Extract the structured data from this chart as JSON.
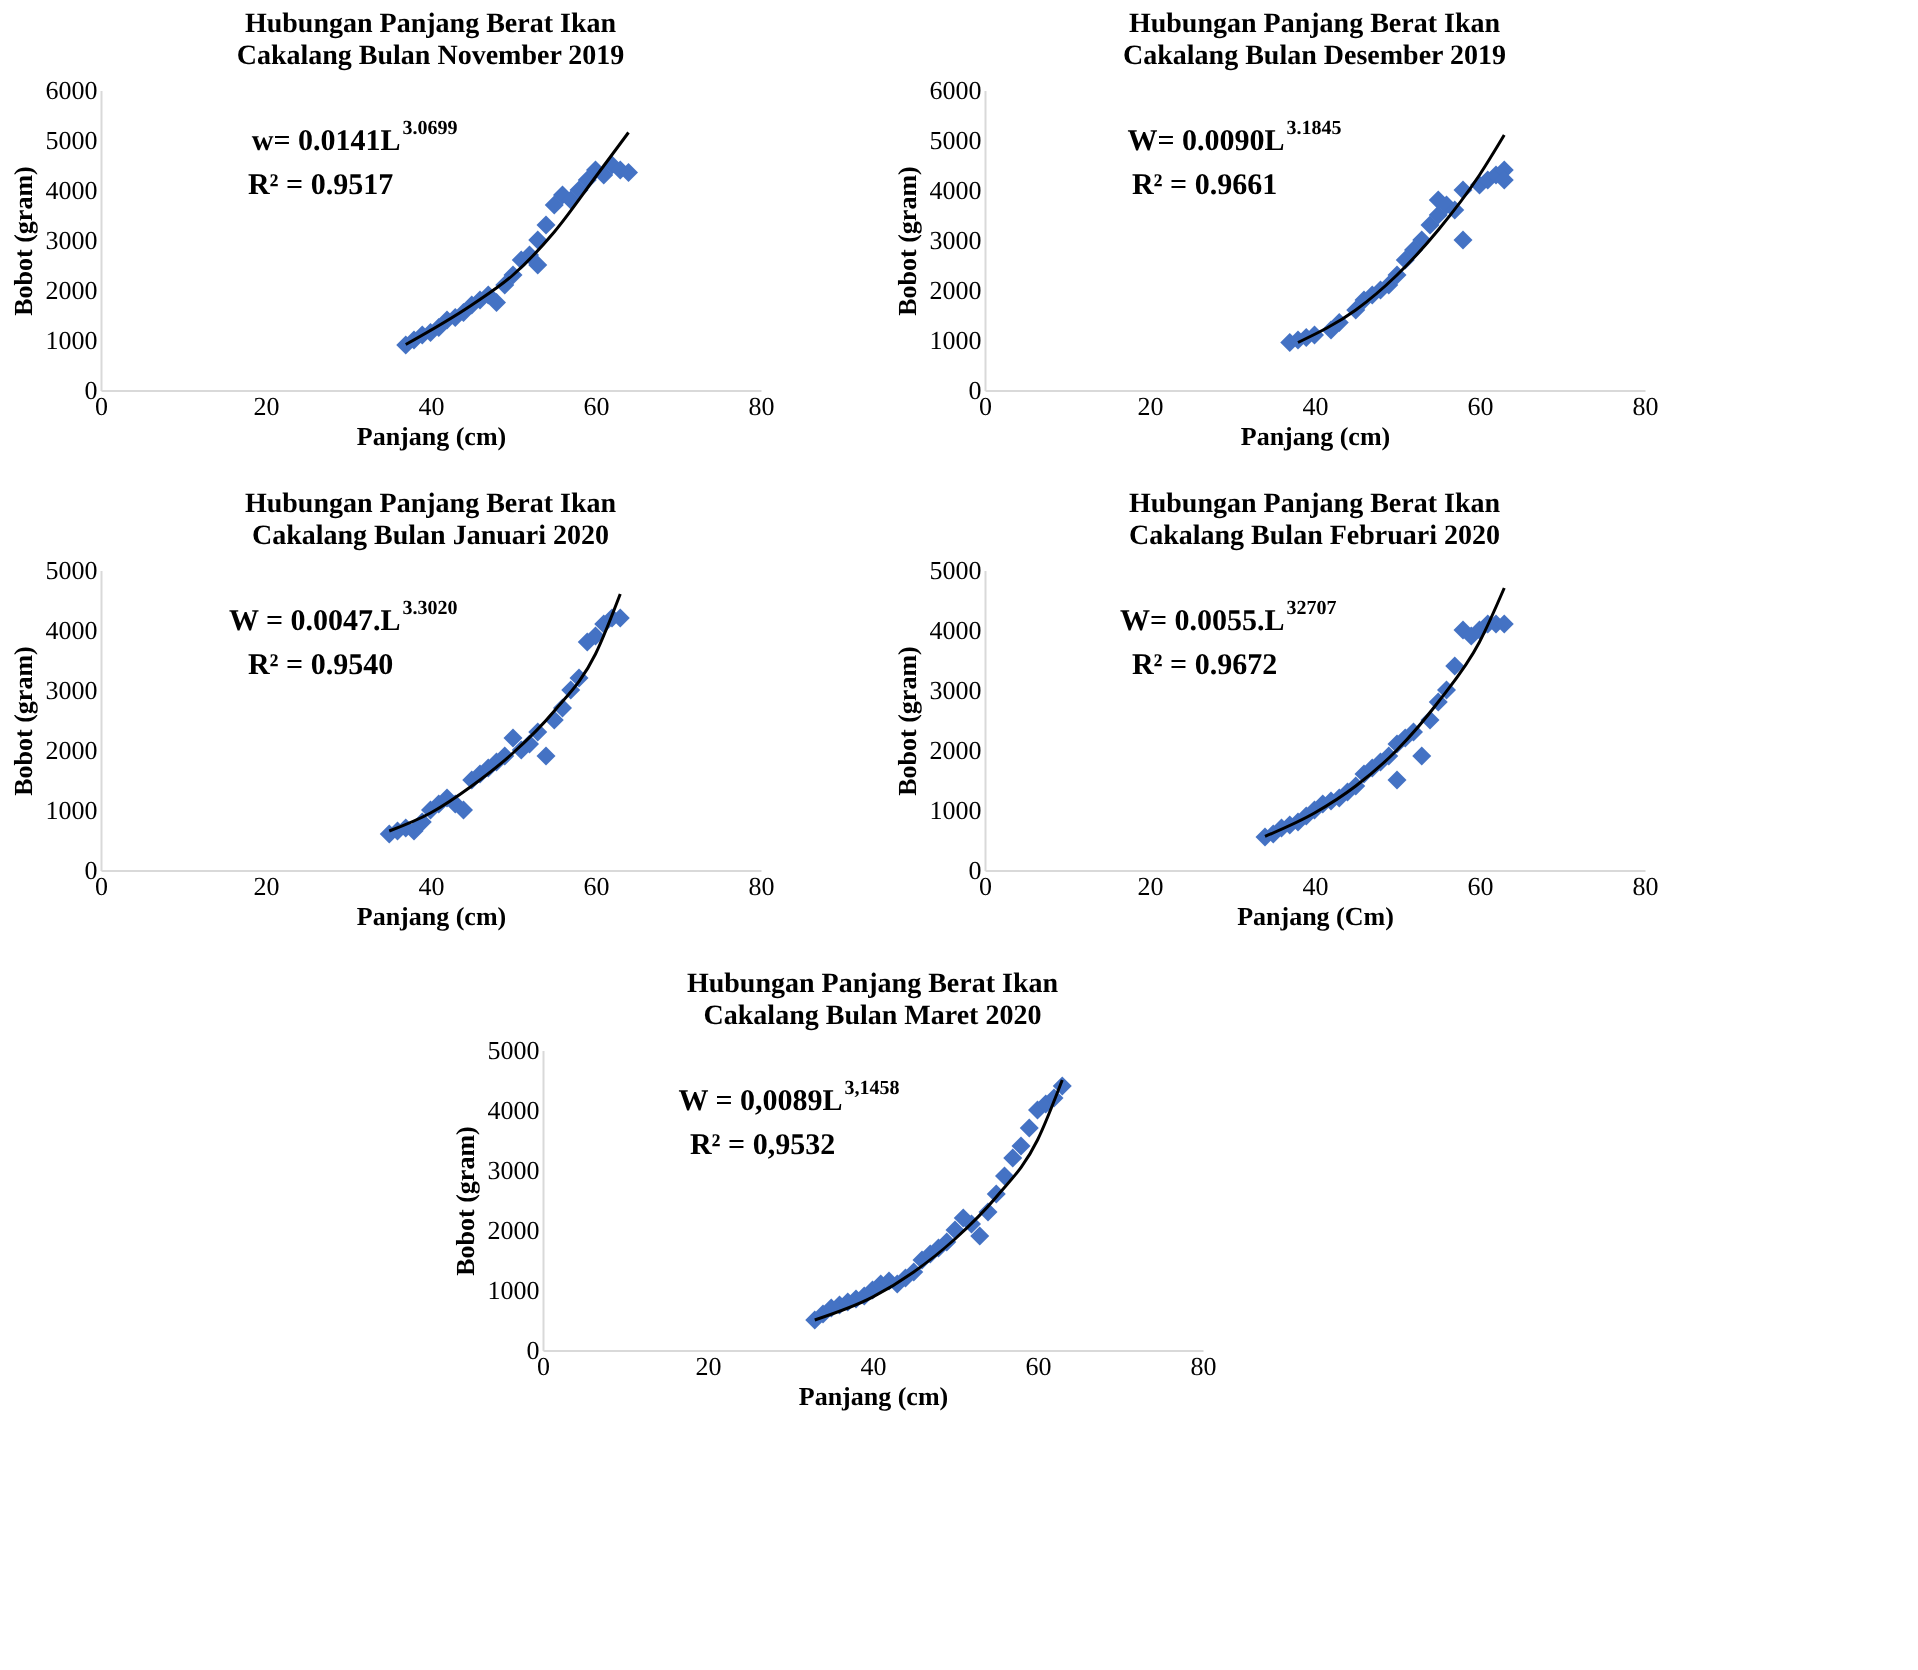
{
  "chart_data": [
    {
      "type": "scatter",
      "title": "Hubungan Panjang Berat Ikan\nCakalang Bulan November 2019",
      "xlabel": "Panjang (cm)",
      "ylabel": "Bobot (gram)",
      "xlim": [
        0,
        80
      ],
      "xticks": [
        0,
        20,
        40,
        60,
        80
      ],
      "ylim": [
        0,
        6000
      ],
      "yticks": [
        0,
        1000,
        2000,
        3000,
        4000,
        5000,
        6000
      ],
      "grid": false,
      "legend": false,
      "annotations": [
        "w= 0.0141L$^{3.0699}$",
        "R² = 0.9517"
      ],
      "series": [
        {
          "type": "scatter",
          "marker": "diamond",
          "color": "#4472c4",
          "x": [
            37,
            38,
            39,
            40,
            41,
            42,
            43,
            44,
            45,
            46,
            47,
            48,
            49,
            50,
            51,
            52,
            53,
            53,
            54,
            55,
            56,
            57,
            58,
            59,
            60,
            61,
            62,
            63,
            64
          ],
          "values": [
            900,
            1000,
            1100,
            1150,
            1250,
            1400,
            1450,
            1550,
            1700,
            1800,
            1900,
            1750,
            2100,
            2300,
            2600,
            2700,
            2500,
            3000,
            3300,
            3700,
            3900,
            3800,
            4000,
            4200,
            4400,
            4300,
            4500,
            4400,
            4350
          ]
        },
        {
          "type": "line",
          "marker": "none",
          "line_style": "solid",
          "color": "#000000",
          "x": [
            37,
            45,
            50,
            55,
            60,
            64
          ],
          "values": [
            910,
            1700,
            2300,
            3160,
            4260,
            5150
          ]
        }
      ]
    },
    {
      "type": "scatter",
      "title": "Hubungan Panjang Berat Ikan\nCakalang Bulan Desember 2019",
      "xlabel": "Panjang (cm)",
      "ylabel": "Bobot (gram)",
      "xlim": [
        0,
        80
      ],
      "xticks": [
        0,
        20,
        40,
        60,
        80
      ],
      "ylim": [
        0,
        6000
      ],
      "yticks": [
        0,
        1000,
        2000,
        3000,
        4000,
        5000,
        6000
      ],
      "grid": false,
      "legend": false,
      "annotations": [
        "W= 0.0090L$^{3.1845}$",
        "R² = 0.9661"
      ],
      "series": [
        {
          "type": "scatter",
          "marker": "diamond",
          "color": "#4472c4",
          "x": [
            37,
            38,
            39,
            40,
            42,
            43,
            45,
            46,
            47,
            48,
            49,
            50,
            51,
            52,
            53,
            54,
            55,
            55,
            56,
            57,
            58,
            58,
            60,
            61,
            62,
            63,
            63
          ],
          "values": [
            950,
            1000,
            1050,
            1100,
            1200,
            1350,
            1600,
            1800,
            1900,
            2000,
            2100,
            2300,
            2600,
            2800,
            3000,
            3300,
            3500,
            3800,
            3700,
            3600,
            3000,
            4000,
            4100,
            4200,
            4300,
            4400,
            4200
          ]
        },
        {
          "type": "line",
          "marker": "none",
          "line_style": "solid",
          "color": "#000000",
          "x": [
            38,
            45,
            50,
            55,
            60,
            63
          ],
          "values": [
            950,
            1600,
            2300,
            3200,
            4300,
            5100
          ]
        }
      ]
    },
    {
      "type": "scatter",
      "title": "Hubungan Panjang Berat Ikan\nCakalang Bulan Januari 2020",
      "xlabel": "Panjang (cm)",
      "ylabel": "Bobot (gram)",
      "xlim": [
        0,
        80
      ],
      "xticks": [
        0,
        20,
        40,
        60,
        80
      ],
      "ylim": [
        0,
        5000
      ],
      "yticks": [
        0,
        1000,
        2000,
        3000,
        4000,
        5000
      ],
      "grid": false,
      "legend": false,
      "annotations": [
        "W = 0.0047.L$^{3.3020}$",
        "R² = 0.9540"
      ],
      "series": [
        {
          "type": "scatter",
          "marker": "diamond",
          "color": "#4472c4",
          "x": [
            35,
            36,
            37,
            38,
            39,
            40,
            41,
            42,
            43,
            44,
            45,
            46,
            47,
            48,
            49,
            50,
            51,
            52,
            53,
            54,
            55,
            56,
            57,
            58,
            59,
            60,
            61,
            62,
            63
          ],
          "values": [
            600,
            650,
            700,
            650,
            800,
            1000,
            1100,
            1200,
            1100,
            1000,
            1500,
            1600,
            1700,
            1800,
            1900,
            2200,
            2000,
            2100,
            2300,
            1900,
            2500,
            2700,
            3000,
            3200,
            3800,
            3900,
            4100,
            4200,
            4200
          ]
        },
        {
          "type": "line",
          "marker": "none",
          "line_style": "solid",
          "color": "#000000",
          "x": [
            35,
            40,
            45,
            50,
            55,
            60,
            63
          ],
          "values": [
            650,
            950,
            1400,
            1950,
            2650,
            3600,
            4600
          ]
        }
      ]
    },
    {
      "type": "scatter",
      "title": "Hubungan Panjang Berat Ikan\nCakalang Bulan Februari 2020",
      "xlabel": "Panjang (Cm)",
      "ylabel": "Bobot (gram)",
      "xlim": [
        0,
        80
      ],
      "xticks": [
        0,
        20,
        40,
        60,
        80
      ],
      "ylim": [
        0,
        5000
      ],
      "yticks": [
        0,
        1000,
        2000,
        3000,
        4000,
        5000
      ],
      "grid": false,
      "legend": false,
      "annotations": [
        "W= 0.0055.L$^{32707}$",
        "R² = 0.9672"
      ],
      "series": [
        {
          "type": "scatter",
          "marker": "diamond",
          "color": "#4472c4",
          "x": [
            34,
            35,
            36,
            37,
            38,
            39,
            40,
            41,
            42,
            43,
            44,
            45,
            46,
            47,
            48,
            49,
            50,
            50,
            51,
            52,
            53,
            54,
            55,
            56,
            57,
            58,
            59,
            60,
            61,
            62,
            63
          ],
          "values": [
            550,
            600,
            700,
            750,
            800,
            900,
            1000,
            1100,
            1150,
            1200,
            1300,
            1400,
            1600,
            1700,
            1800,
            1900,
            1500,
            2100,
            2200,
            2300,
            1900,
            2500,
            2800,
            3000,
            3400,
            4000,
            3900,
            4000,
            4100,
            4100,
            4100
          ]
        },
        {
          "type": "line",
          "marker": "none",
          "line_style": "solid",
          "color": "#000000",
          "x": [
            34,
            40,
            45,
            50,
            55,
            60,
            63
          ],
          "values": [
            560,
            950,
            1400,
            2000,
            2800,
            3800,
            4700
          ]
        }
      ]
    },
    {
      "type": "scatter",
      "title": "Hubungan Panjang Berat Ikan\nCakalang Bulan Maret 2020",
      "xlabel": "Panjang (cm)",
      "ylabel": "Bobot (gram)",
      "xlim": [
        0,
        80
      ],
      "xticks": [
        0,
        20,
        40,
        60,
        80
      ],
      "ylim": [
        0,
        5000
      ],
      "yticks": [
        0,
        1000,
        2000,
        3000,
        4000,
        5000
      ],
      "grid": false,
      "legend": false,
      "annotations": [
        "W = 0,0089L$^{3,1458}$",
        "R² =  0,9532"
      ],
      "series": [
        {
          "type": "scatter",
          "marker": "diamond",
          "color": "#4472c4",
          "x": [
            33,
            34,
            35,
            36,
            37,
            38,
            39,
            40,
            41,
            42,
            43,
            44,
            45,
            46,
            47,
            48,
            49,
            50,
            51,
            52,
            53,
            54,
            55,
            56,
            57,
            58,
            59,
            60,
            61,
            62,
            63
          ],
          "values": [
            500,
            600,
            700,
            750,
            800,
            850,
            900,
            1000,
            1100,
            1150,
            1100,
            1200,
            1300,
            1500,
            1600,
            1700,
            1800,
            2000,
            2200,
            2100,
            1900,
            2300,
            2600,
            2900,
            3200,
            3400,
            3700,
            4000,
            4100,
            4200,
            4400
          ]
        },
        {
          "type": "line",
          "marker": "none",
          "line_style": "solid",
          "color": "#000000",
          "x": [
            33,
            40,
            45,
            50,
            55,
            60,
            63
          ],
          "values": [
            500,
            880,
            1300,
            1850,
            2550,
            3500,
            4500
          ]
        }
      ]
    }
  ]
}
